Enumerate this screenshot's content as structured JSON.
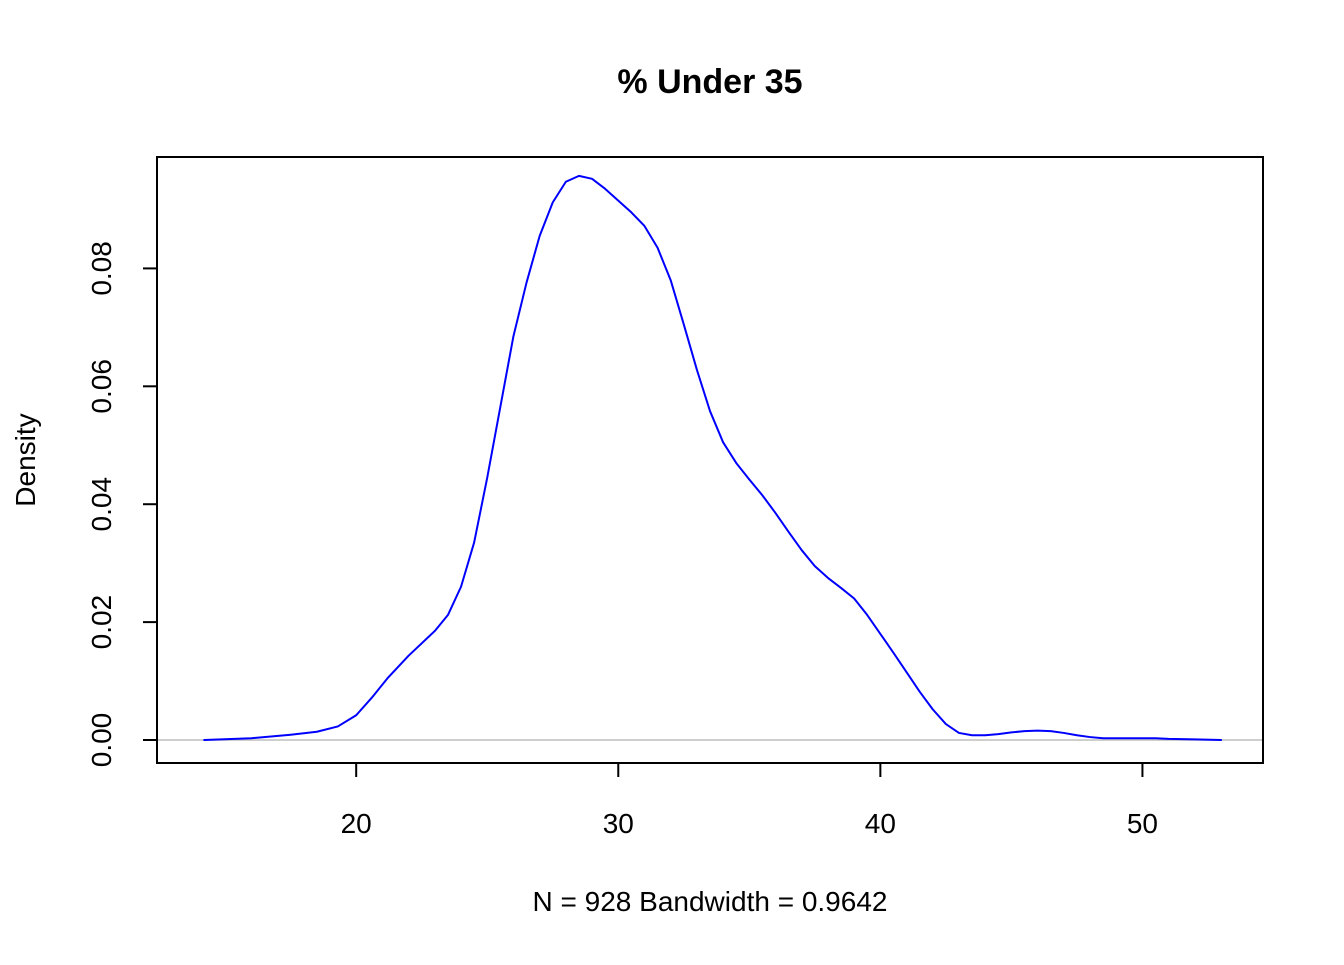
{
  "chart_data": {
    "type": "line",
    "title": "% Under 35",
    "xlabel": "N = 928   Bandwidth = 0.9642",
    "ylabel": "Density",
    "xlim": [
      12.4,
      54.6
    ],
    "ylim": [
      -0.0039,
      0.0989
    ],
    "x_ticks": [
      20,
      30,
      40,
      50
    ],
    "x_tick_labels": [
      "20",
      "30",
      "40",
      "50"
    ],
    "y_ticks": [
      0.0,
      0.02,
      0.04,
      0.06,
      0.08
    ],
    "y_tick_labels": [
      "0.00",
      "0.02",
      "0.04",
      "0.06",
      "0.08"
    ],
    "grid": false,
    "baseline": 0,
    "colors": {
      "line": "#0000ff",
      "baseline": "#bebebe",
      "axes": "#000000"
    },
    "series": [
      {
        "x": [
          14.2,
          16,
          17.5,
          18.5,
          19.3,
          20,
          20.6,
          21.2,
          22,
          23,
          23.5,
          24,
          24.5,
          25,
          25.5,
          26,
          26.5,
          27,
          27.5,
          28,
          28.5,
          29,
          29.5,
          30,
          30.5,
          31,
          31.5,
          32,
          32.5,
          33,
          33.5,
          34,
          34.5,
          35,
          35.5,
          36,
          36.5,
          37,
          37.5,
          38,
          38.5,
          39,
          39.5,
          40,
          40.5,
          41,
          41.5,
          42,
          42.5,
          43,
          43.5,
          44,
          44.5,
          45,
          45.5,
          46,
          46.5,
          47,
          47.5,
          48,
          48.5,
          49,
          49.5,
          50,
          50.5,
          51,
          52,
          53
        ],
        "y": [
          0.0,
          0.0003,
          0.0009,
          0.0014,
          0.0023,
          0.0042,
          0.0072,
          0.0105,
          0.0143,
          0.0185,
          0.0212,
          0.026,
          0.0335,
          0.0445,
          0.0565,
          0.0685,
          0.0776,
          0.0855,
          0.0912,
          0.0947,
          0.0957,
          0.0952,
          0.0935,
          0.0915,
          0.0895,
          0.0872,
          0.0835,
          0.078,
          0.0705,
          0.0628,
          0.0558,
          0.0505,
          0.047,
          0.0442,
          0.0415,
          0.0385,
          0.0353,
          0.0322,
          0.0295,
          0.0275,
          0.0258,
          0.024,
          0.0212,
          0.018,
          0.0148,
          0.0115,
          0.0082,
          0.0052,
          0.0027,
          0.0012,
          0.0008,
          0.0008,
          0.001,
          0.0013,
          0.0015,
          0.0016,
          0.0015,
          0.0012,
          0.0008,
          0.0005,
          0.0003,
          0.0003,
          0.0003,
          0.0003,
          0.0003,
          0.0002,
          0.0001,
          0.0
        ]
      }
    ]
  }
}
